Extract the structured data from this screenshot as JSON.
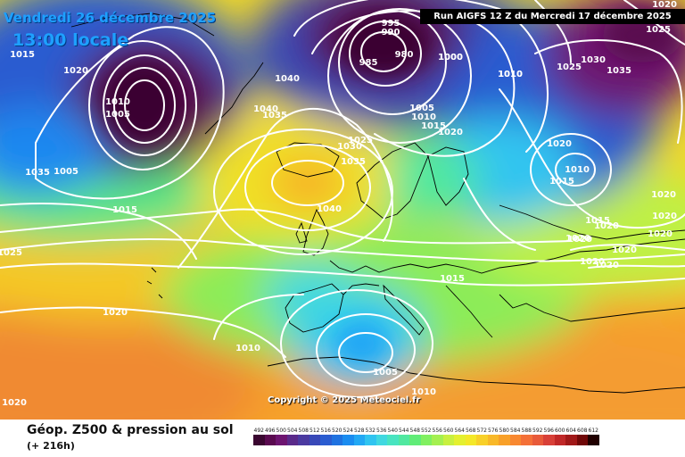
{
  "header": {
    "date_title": "Vendredi 26 décembre 2025",
    "time_title": "13:00 locale",
    "run_banner": "Run AIGFS 12 Z du Mercredi 17 décembre 2025"
  },
  "copyright": "Copyright © 2025 Meteociel.fr",
  "footer": {
    "title": "Géop. Z500 & pression au sol",
    "subtitle": "(+ 216h)"
  },
  "isobar_labels": [
    "1015",
    "1020",
    "1010",
    "1005",
    "1000",
    "1010",
    "1040",
    "1040",
    "1035",
    "1035",
    "1030",
    "1025",
    "1035",
    "995",
    "990",
    "985",
    "980",
    "1000",
    "1005",
    "1010",
    "1015",
    "1020",
    "1010",
    "1025",
    "1030",
    "1035",
    "1020",
    "1020",
    "1010",
    "1015",
    "1025",
    "1020",
    "1005",
    "1015",
    "1025",
    "1040",
    "1015",
    "1020",
    "1010",
    "1005",
    "1010",
    "1020",
    "1015",
    "1020",
    "1020",
    "1020",
    "1020",
    "1020",
    "1020",
    "1020",
    "1020"
  ],
  "scale": {
    "labels": [
      "492",
      "496",
      "500",
      "504",
      "508",
      "512",
      "516",
      "520",
      "524",
      "528",
      "532",
      "536",
      "540",
      "544",
      "548",
      "552",
      "556",
      "560",
      "564",
      "568",
      "572",
      "576",
      "580",
      "584",
      "588",
      "592",
      "596",
      "600",
      "604",
      "608",
      "612"
    ],
    "colors": [
      "#3a0630",
      "#5a0a50",
      "#6d1470",
      "#5a2a8a",
      "#4b3aa0",
      "#3848b8",
      "#2a5cd0",
      "#1f72e0",
      "#1a8cf0",
      "#22a8f4",
      "#30c4f0",
      "#40d8e0",
      "#48e4c0",
      "#50e8a0",
      "#60ec78",
      "#80f060",
      "#a4f050",
      "#c8f040",
      "#e4f030",
      "#f4e828",
      "#f8d028",
      "#f8b828",
      "#f8a028",
      "#f88830",
      "#f47038",
      "#e85a3a",
      "#d84038",
      "#c02828",
      "#a01818",
      "#700808",
      "#200000"
    ]
  }
}
